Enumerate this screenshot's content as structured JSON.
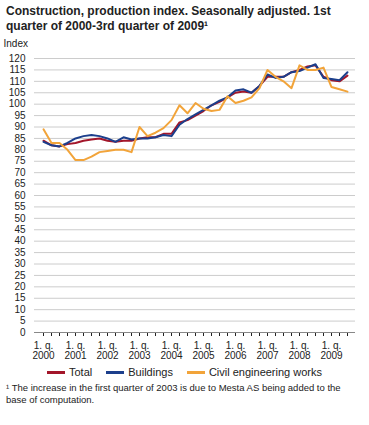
{
  "chart_data": {
    "type": "line",
    "title": "Construction, production index. Seasonally adjusted. 1st quarter of 2000-3rd quarter of 2009¹",
    "y_label": "Index",
    "footnote": "¹ The increase in the first quarter of 2003 is due to Mesta AS being added to the base of computation.",
    "categories": [
      "1. q. 2000",
      null,
      null,
      null,
      "1. q. 2001",
      null,
      null,
      null,
      "1. q. 2002",
      null,
      null,
      null,
      "1. q. 2003",
      null,
      null,
      null,
      "1. q. 2004",
      null,
      null,
      null,
      "1. q. 2005",
      null,
      null,
      null,
      "1. q. 2006",
      null,
      null,
      null,
      "1. q. 2007",
      null,
      null,
      null,
      "1. q. 2008",
      null,
      null,
      null,
      "1. q. 2009",
      null,
      null
    ],
    "series": [
      {
        "name": "Total",
        "color": "#a3162a",
        "values": [
          84,
          82,
          81.5,
          82.5,
          83,
          84,
          84.5,
          85,
          84,
          83.5,
          84,
          84,
          85,
          85.5,
          85.5,
          87,
          87,
          92,
          93,
          95,
          97,
          99.5,
          101,
          103,
          105,
          105.5,
          105,
          108,
          112,
          112,
          112,
          114,
          115,
          116.5,
          117,
          112,
          110.5,
          110,
          112.5
        ]
      },
      {
        "name": "Buildings",
        "color": "#1c3f8c",
        "values": [
          83.5,
          82,
          81.5,
          83,
          85,
          86,
          86.5,
          86,
          85,
          83.5,
          85.5,
          84.5,
          85,
          85,
          85.5,
          86.5,
          86,
          91,
          93.5,
          95.5,
          97.5,
          99.5,
          101.5,
          103,
          106,
          106.5,
          105,
          108,
          113,
          111.5,
          112,
          114,
          114.5,
          116,
          117.5,
          111.5,
          111,
          110.5,
          114
        ]
      },
      {
        "name": "Civil engineering works",
        "color": "#f2a43a",
        "values": [
          89,
          83,
          83,
          80,
          75.5,
          75.5,
          77,
          79,
          79.5,
          80,
          80,
          79,
          90,
          86,
          87.5,
          89.5,
          93,
          99.5,
          96,
          100.5,
          98,
          97,
          97.5,
          103.5,
          100.5,
          101.5,
          103,
          107,
          115,
          112,
          110,
          107,
          117,
          115,
          115,
          116,
          107.5,
          106.5,
          105.5
        ]
      }
    ],
    "ylim": [
      0,
      120
    ],
    "yticks": [
      0,
      5,
      10,
      15,
      20,
      25,
      30,
      35,
      40,
      45,
      50,
      55,
      60,
      65,
      70,
      75,
      80,
      85,
      90,
      95,
      100,
      105,
      110,
      115,
      120
    ],
    "grid": true,
    "legend": "bottom"
  }
}
